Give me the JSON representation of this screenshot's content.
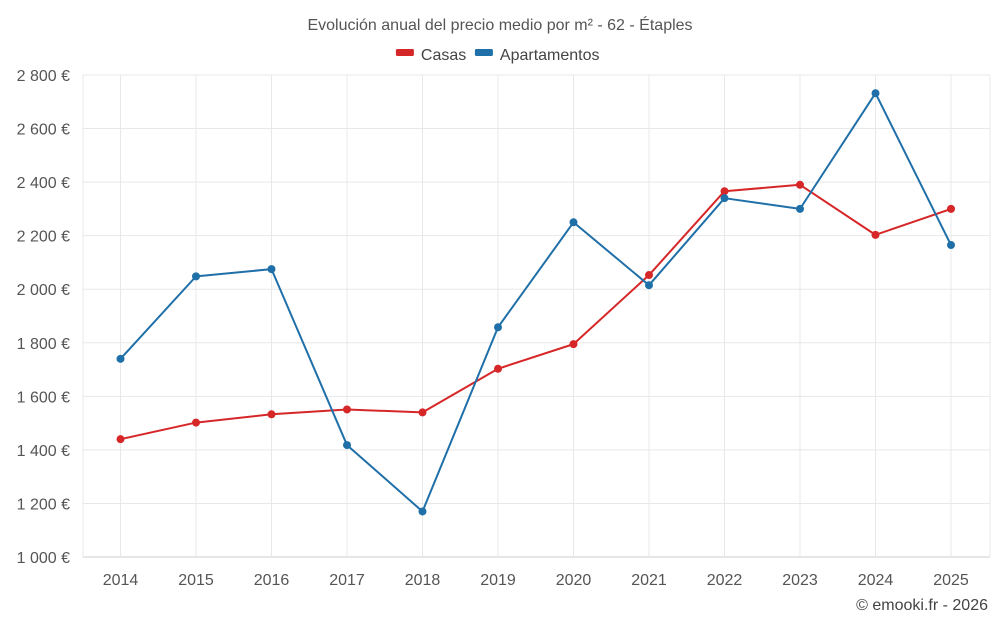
{
  "chart_data": {
    "type": "line",
    "title": "Evolución anual del precio medio por m² - 62 - Étaples",
    "categories": [
      "2014",
      "2015",
      "2016",
      "2017",
      "2018",
      "2019",
      "2020",
      "2021",
      "2022",
      "2023",
      "2024",
      "2025"
    ],
    "series": [
      {
        "name": "Casas",
        "color": "#d62728",
        "values": [
          1440,
          1502,
          1533,
          1551,
          1540,
          1703,
          1795,
          2053,
          2366,
          2390,
          2203,
          2300
        ]
      },
      {
        "name": "Apartamentos",
        "color": "#1f6fa8",
        "values": [
          1740,
          2048,
          2075,
          1418,
          1170,
          1858,
          2250,
          2015,
          2340,
          2300,
          2732,
          2165
        ]
      }
    ],
    "y_ticks": [
      1000,
      1200,
      1400,
      1600,
      1800,
      2000,
      2200,
      2400,
      2600,
      2800
    ],
    "y_tick_labels": [
      "1 000 €",
      "1 200 €",
      "1 400 €",
      "1 600 €",
      "1 800 €",
      "2 000 €",
      "2 200 €",
      "2 400 €",
      "2 600 €",
      "2 800 €"
    ],
    "ylim": [
      1000,
      2800
    ],
    "xlabel": "",
    "ylabel": "",
    "grid": true,
    "legend_position": "top-center"
  },
  "credit": "© emooki.fr - 2026"
}
